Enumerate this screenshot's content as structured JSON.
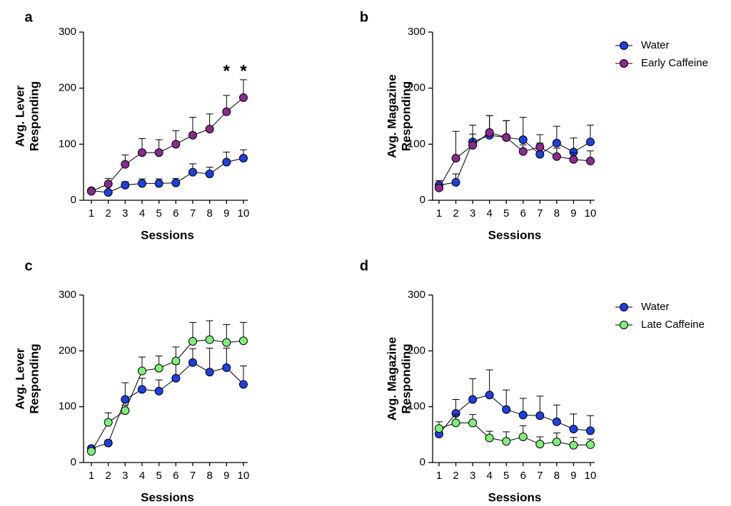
{
  "chart_data": [
    {
      "panel": "a",
      "type": "line",
      "xlabel": "Sessions",
      "ylabel": [
        "Avg. Lever",
        "Responding"
      ],
      "categories": [
        "1",
        "2",
        "3",
        "4",
        "5",
        "6",
        "7",
        "8",
        "9",
        "10"
      ],
      "ylim": [
        0,
        300
      ],
      "yticks": [
        "0",
        "100",
        "200",
        "300"
      ],
      "series": [
        {
          "name": "Water",
          "color": "#1f3fe0",
          "values": [
            17,
            14,
            27,
            30,
            30,
            31,
            50,
            47,
            68,
            75
          ],
          "errors": [
            3,
            2,
            6,
            8,
            8,
            8,
            15,
            12,
            18,
            15
          ]
        },
        {
          "name": "Early Caffeine",
          "color": "#8b2a8e",
          "values": [
            16,
            29,
            64,
            85,
            85,
            100,
            116,
            127,
            158,
            183
          ],
          "errors": [
            2,
            10,
            17,
            25,
            23,
            24,
            32,
            27,
            29,
            32
          ]
        }
      ],
      "significance": [
        {
          "category": "9",
          "label": "*"
        },
        {
          "category": "10",
          "label": "*"
        }
      ]
    },
    {
      "panel": "b",
      "type": "line",
      "xlabel": "Sessions",
      "ylabel": [
        "Avg. Magazine",
        "Responding"
      ],
      "categories": [
        "1",
        "2",
        "3",
        "4",
        "5",
        "6",
        "7",
        "8",
        "9",
        "10"
      ],
      "ylim": [
        0,
        300
      ],
      "yticks": [
        "0",
        "100",
        "200",
        "300"
      ],
      "legend": {
        "placement": "right",
        "entries": [
          "Water",
          "Early Caffeine"
        ]
      },
      "series": [
        {
          "name": "Water",
          "color": "#1f3fe0",
          "values": [
            27,
            32,
            104,
            116,
            112,
            108,
            82,
            102,
            86,
            104
          ],
          "errors": [
            8,
            15,
            30,
            35,
            30,
            40,
            20,
            30,
            25,
            30
          ]
        },
        {
          "name": "Early Caffeine",
          "color": "#8b2a8e",
          "values": [
            22,
            75,
            98,
            121,
            112,
            87,
            95,
            78,
            73,
            70
          ],
          "errors": [
            5,
            48,
            20,
            30,
            30,
            12,
            22,
            15,
            12,
            18
          ]
        }
      ]
    },
    {
      "panel": "c",
      "type": "line",
      "xlabel": "Sessions",
      "ylabel": [
        "Avg. Lever",
        "Responding"
      ],
      "categories": [
        "1",
        "2",
        "3",
        "4",
        "5",
        "6",
        "7",
        "8",
        "9",
        "10"
      ],
      "ylim": [
        0,
        300
      ],
      "yticks": [
        "0",
        "100",
        "200",
        "300"
      ],
      "series": [
        {
          "name": "Water",
          "color": "#1f3fe0",
          "values": [
            25,
            35,
            113,
            131,
            128,
            151,
            179,
            162,
            170,
            140
          ],
          "errors": [
            5,
            5,
            30,
            20,
            20,
            25,
            25,
            43,
            35,
            33
          ]
        },
        {
          "name": "Late Caffeine",
          "color": "#7ef07a",
          "values": [
            20,
            72,
            93,
            164,
            169,
            182,
            217,
            220,
            215,
            218
          ],
          "errors": [
            5,
            17,
            10,
            25,
            22,
            25,
            34,
            34,
            32,
            33
          ]
        }
      ]
    },
    {
      "panel": "d",
      "type": "line",
      "xlabel": "Sessions",
      "ylabel": [
        "Avg. Magazine",
        "Responding"
      ],
      "categories": [
        "1",
        "2",
        "3",
        "4",
        "5",
        "6",
        "7",
        "8",
        "9",
        "10"
      ],
      "ylim": [
        0,
        300
      ],
      "yticks": [
        "0",
        "100",
        "200",
        "300"
      ],
      "legend": {
        "placement": "right",
        "entries": [
          "Water",
          "Late Caffeine"
        ]
      },
      "series": [
        {
          "name": "Water",
          "color": "#1f3fe0",
          "values": [
            51,
            88,
            113,
            121,
            95,
            85,
            84,
            73,
            60,
            57
          ],
          "errors": [
            10,
            25,
            37,
            45,
            35,
            30,
            35,
            30,
            27,
            27
          ]
        },
        {
          "name": "Late Caffeine",
          "color": "#7ef07a",
          "values": [
            61,
            71,
            71,
            44,
            38,
            46,
            33,
            37,
            31,
            32
          ],
          "errors": [
            12,
            15,
            15,
            12,
            17,
            20,
            13,
            16,
            14,
            10
          ]
        }
      ]
    }
  ]
}
